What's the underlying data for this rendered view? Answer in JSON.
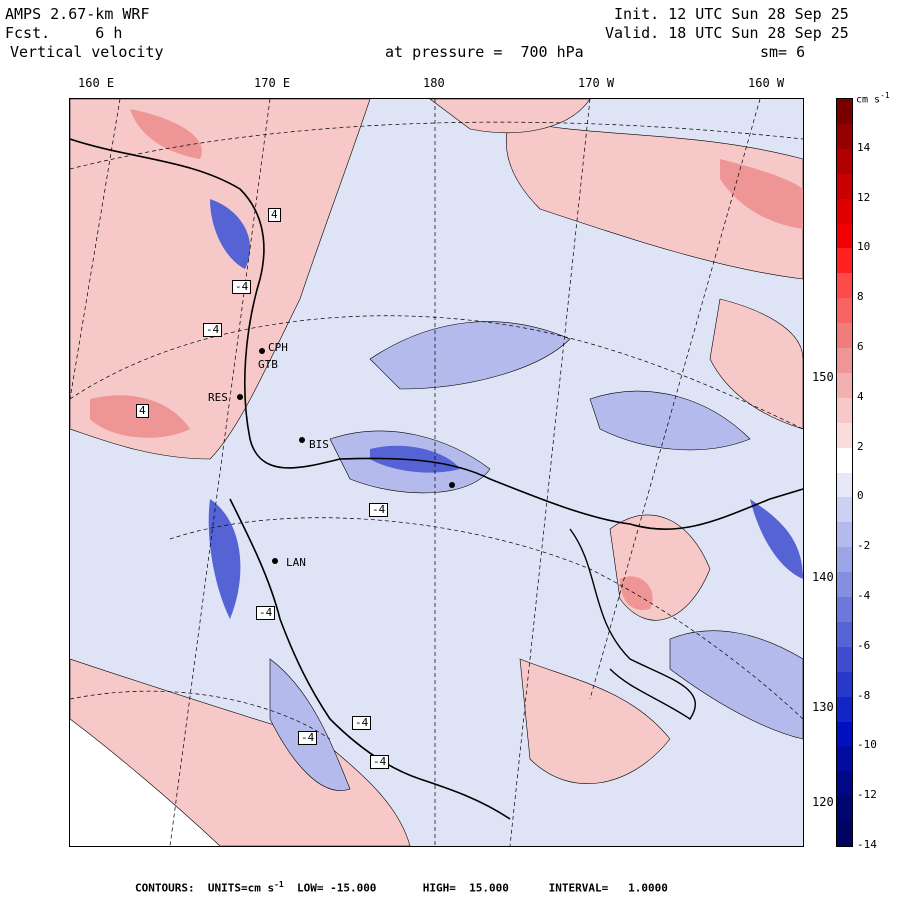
{
  "header": {
    "model": "AMPS 2.67-km WRF",
    "forecast": "Fcst.     6 h",
    "field": "Vertical velocity",
    "init": "Init. 12 UTC Sun 28 Sep 25",
    "valid": "Valid. 18 UTC Sun 28 Sep 25",
    "pressure": "at pressure =  700 hPa",
    "smoothing": "sm= 6"
  },
  "longitude_labels": [
    "160 E",
    "170 E",
    "180",
    "170 W",
    "160 W"
  ],
  "latitude_labels": [
    "150 W",
    "140 W",
    "130 W",
    "120 W"
  ],
  "colorbar": {
    "units": "cm s",
    "units_exp": "-1",
    "labels": [
      "14",
      "12",
      "10",
      "8",
      "6",
      "4",
      "2",
      "0",
      "-2",
      "-4",
      "-6",
      "-8",
      "-10",
      "-12",
      "-14"
    ],
    "colors": [
      "#7a0000",
      "#950000",
      "#b00000",
      "#c80000",
      "#e00000",
      "#f00000",
      "#ff2020",
      "#ff4a4a",
      "#f86464",
      "#f07c7c",
      "#ee9696",
      "#f2b0b0",
      "#f6c8c8",
      "#fadcdc",
      "#ffffff",
      "#e6e8f8",
      "#ccd0f2",
      "#b4bbec",
      "#9ca5e6",
      "#848fe0",
      "#6c79da",
      "#5563d5",
      "#3e4dd0",
      "#2838cb",
      "#1226c6",
      "#0010c0",
      "#000ba0",
      "#000888",
      "#000670",
      "#000460"
    ]
  },
  "stations": [
    "BIS",
    "LAN",
    "CPH",
    "GTB",
    "RES"
  ],
  "contour_value_label": "-4",
  "contour_value_label_pos": "4",
  "footer": {
    "text": "CONTOURS:  UNITS=cm s",
    "exp": "-1",
    "rest": "  LOW= -15.000       HIGH=  15.000      INTERVAL=   1.0000"
  }
}
